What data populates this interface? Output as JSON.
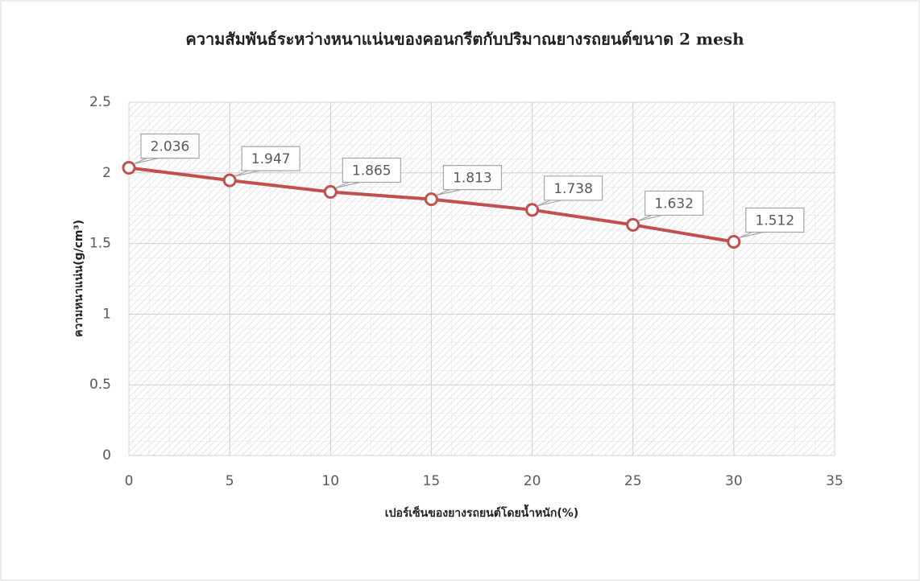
{
  "chart_data": {
    "type": "line",
    "title": "ความสัมพันธ์ระหว่างหนาแน่นของคอนกรีตกับปริมาณยางรถยนต์ขนาด 2 mesh",
    "xlabel": "เปอร์เซ็นของยางรถยนต์โดยน้ำหนัก(%)",
    "ylabel": "ความหนาแน่น(g/cm³)",
    "x": [
      0,
      5,
      10,
      15,
      20,
      25,
      30
    ],
    "series": [
      {
        "name": "ความหนาแน่น",
        "color": "#c0504d",
        "values": [
          2.036,
          1.947,
          1.865,
          1.813,
          1.738,
          1.632,
          1.512
        ]
      }
    ],
    "xlim": [
      0,
      35
    ],
    "xticks": [
      0,
      5,
      10,
      15,
      20,
      25,
      30,
      35
    ],
    "ylim": [
      0,
      2.5
    ],
    "yticks": [
      0,
      0.5,
      1,
      1.5,
      2,
      2.5
    ],
    "grid": true
  }
}
